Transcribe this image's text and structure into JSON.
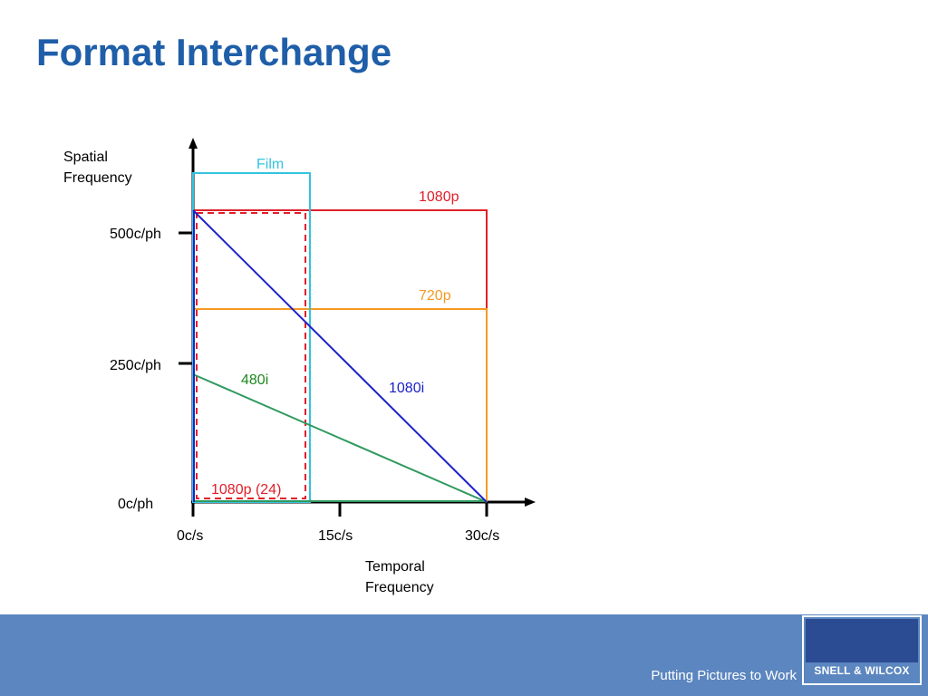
{
  "title": "Format Interchange",
  "axes": {
    "y_title_line1": "Spatial",
    "y_title_line2": "Frequency",
    "x_title_line1": "Temporal",
    "x_title_line2": "Frequency",
    "y_ticks": [
      "500c/ph",
      "250c/ph",
      "0c/ph"
    ],
    "x_ticks": [
      "0c/s",
      "15c/s",
      "30c/s"
    ]
  },
  "formats": {
    "film": "Film",
    "p1080": "1080p",
    "p720": "720p",
    "i480": "480i",
    "i1080": "1080i",
    "p1080_24": "1080p (24)"
  },
  "colors": {
    "film": "#33c3e0",
    "p1080": "#e0202a",
    "p720": "#f59a23",
    "i480": "#2e9a5e",
    "i1080": "#1c22c8",
    "p1080_24": "#e0202a",
    "title": "#1f5ea8"
  },
  "footer": {
    "tagline": "Putting Pictures to Work",
    "logo_text": "SNELL & WILCOX"
  }
}
